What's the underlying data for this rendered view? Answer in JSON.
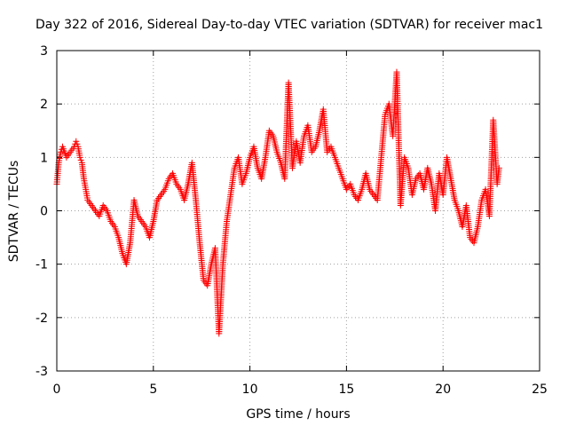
{
  "chart_data": {
    "type": "scatter",
    "title": "Day 322 of 2016, Sidereal Day-to-day VTEC variation (SDTVAR) for receiver mac1",
    "xlabel": "GPS time / hours",
    "ylabel": "SDTVAR / TECUs",
    "xlim": [
      0,
      25
    ],
    "ylim": [
      -3,
      3
    ],
    "x_ticks": [
      0,
      5,
      10,
      15,
      20,
      25
    ],
    "y_ticks": [
      -3,
      -2,
      -1,
      0,
      1,
      2,
      3
    ],
    "x_tick_labels": [
      "0",
      "5",
      "10",
      "15",
      "20",
      "25"
    ],
    "y_tick_labels": [
      "-3",
      "-2",
      "-1",
      "0",
      "1",
      "2",
      "3"
    ],
    "grid": true,
    "marker": "+",
    "series": [
      {
        "name": "mac1",
        "color": "#ff0000",
        "x": [
          0.0,
          0.1,
          0.2,
          0.3,
          0.5,
          0.7,
          0.9,
          1.0,
          1.1,
          1.2,
          1.3,
          1.4,
          1.5,
          1.6,
          1.8,
          2.0,
          2.2,
          2.4,
          2.6,
          2.8,
          3.0,
          3.2,
          3.4,
          3.6,
          3.8,
          4.0,
          4.2,
          4.4,
          4.6,
          4.8,
          5.0,
          5.2,
          5.4,
          5.6,
          5.8,
          6.0,
          6.2,
          6.4,
          6.6,
          6.8,
          7.0,
          7.2,
          7.4,
          7.6,
          7.8,
          8.0,
          8.2,
          8.4,
          8.6,
          8.8,
          9.0,
          9.2,
          9.4,
          9.6,
          9.8,
          10.0,
          10.2,
          10.4,
          10.6,
          10.8,
          11.0,
          11.2,
          11.4,
          11.6,
          11.8,
          12.0,
          12.2,
          12.4,
          12.6,
          12.8,
          13.0,
          13.2,
          13.4,
          13.6,
          13.8,
          14.0,
          14.2,
          14.4,
          14.6,
          14.8,
          15.0,
          15.2,
          15.4,
          15.6,
          15.8,
          16.0,
          16.2,
          16.4,
          16.6,
          16.8,
          17.0,
          17.2,
          17.4,
          17.6,
          17.8,
          18.0,
          18.2,
          18.4,
          18.6,
          18.8,
          19.0,
          19.2,
          19.4,
          19.6,
          19.8,
          20.0,
          20.2,
          20.4,
          20.6,
          20.8,
          21.0,
          21.2,
          21.4,
          21.6,
          21.8,
          22.0,
          22.2,
          22.4,
          22.6,
          22.8,
          22.9
        ],
        "y": [
          0.5,
          0.9,
          1.1,
          1.2,
          1.0,
          1.1,
          1.2,
          1.3,
          1.2,
          1.0,
          0.9,
          0.6,
          0.4,
          0.2,
          0.1,
          0.0,
          -0.1,
          0.1,
          0.0,
          -0.2,
          -0.3,
          -0.5,
          -0.8,
          -1.0,
          -0.6,
          0.2,
          -0.1,
          -0.2,
          -0.3,
          -0.5,
          -0.2,
          0.2,
          0.3,
          0.4,
          0.6,
          0.7,
          0.5,
          0.4,
          0.2,
          0.5,
          0.9,
          0.2,
          -0.6,
          -1.3,
          -1.4,
          -1.0,
          -0.7,
          -2.3,
          -1.0,
          -0.2,
          0.3,
          0.8,
          1.0,
          0.5,
          0.7,
          1.0,
          1.2,
          0.8,
          0.6,
          1.0,
          1.5,
          1.4,
          1.1,
          0.9,
          0.6,
          2.4,
          0.8,
          1.3,
          0.9,
          1.4,
          1.6,
          1.1,
          1.2,
          1.5,
          1.9,
          1.1,
          1.2,
          1.0,
          0.8,
          0.6,
          0.4,
          0.5,
          0.3,
          0.2,
          0.4,
          0.7,
          0.4,
          0.3,
          0.2,
          1.0,
          1.8,
          2.0,
          1.4,
          2.6,
          0.1,
          1.0,
          0.8,
          0.3,
          0.6,
          0.7,
          0.4,
          0.8,
          0.5,
          0.0,
          0.7,
          0.3,
          1.0,
          0.6,
          0.2,
          0.0,
          -0.3,
          0.1,
          -0.5,
          -0.6,
          -0.3,
          0.2,
          0.4,
          -0.1,
          1.7,
          0.5,
          0.8
        ]
      }
    ]
  }
}
